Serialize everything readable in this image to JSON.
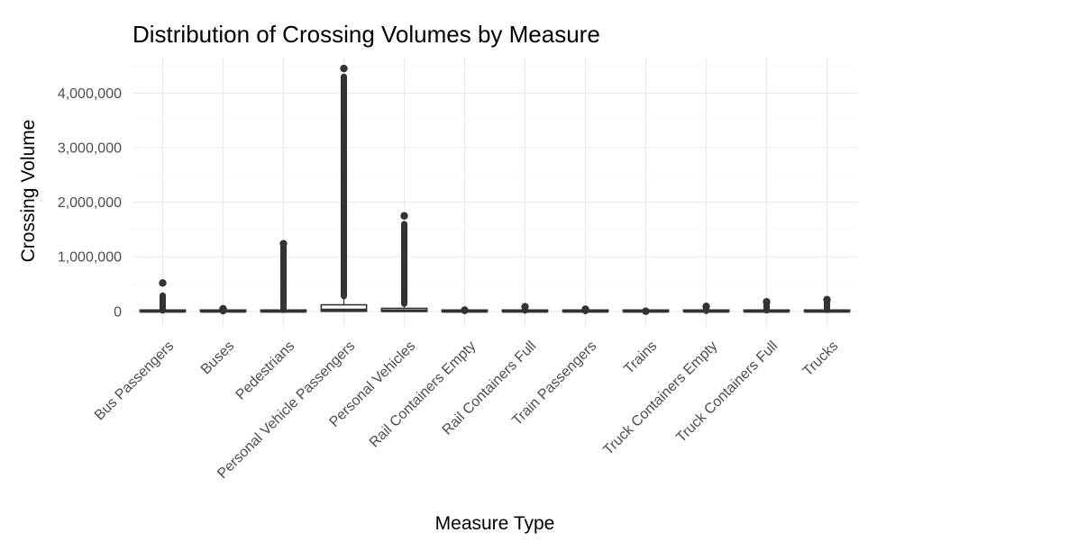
{
  "chart_data": {
    "type": "boxplot",
    "title": "Distribution of Crossing Volumes by Measure",
    "xlabel": "Measure Type",
    "ylabel": "Crossing Volume",
    "ylim": [
      -300000,
      4650000
    ],
    "yticks": [
      0,
      1000000,
      2000000,
      3000000,
      4000000
    ],
    "ytick_labels": [
      "0",
      "1,000,000",
      "2,000,000",
      "3,000,000",
      "4,000,000"
    ],
    "grid": true,
    "legend": "none",
    "colors": {
      "box_outline": "#333333",
      "box_fill": "#ffffff",
      "outlier": "#333333",
      "grid": "#ebebeb"
    },
    "categories": [
      "Bus Passengers",
      "Buses",
      "Pedestrians",
      "Personal Vehicle Passengers",
      "Personal Vehicles",
      "Rail Containers Empty",
      "Rail Containers Full",
      "Train Passengers",
      "Trains",
      "Truck Containers Empty",
      "Truck Containers Full",
      "Trucks"
    ],
    "boxes": [
      {
        "q1": 0,
        "median": 0,
        "q3": 5000,
        "whisker_low": 0,
        "whisker_high": 12000,
        "outlier_low": 15000,
        "outlier_high": 290000,
        "outlier_max": 520000
      },
      {
        "q1": 0,
        "median": 0,
        "q3": 300,
        "whisker_low": 0,
        "whisker_high": 700,
        "outlier_low": 1000,
        "outlier_high": 45000,
        "outlier_max": 48000
      },
      {
        "q1": 0,
        "median": 0,
        "q3": 8000,
        "whisker_low": 0,
        "whisker_high": 20000,
        "outlier_low": 25000,
        "outlier_high": 1180000,
        "outlier_max": 1240000
      },
      {
        "q1": 0,
        "median": 25000,
        "q3": 120000,
        "whisker_low": 0,
        "whisker_high": 270000,
        "outlier_low": 280000,
        "outlier_high": 4300000,
        "outlier_max": 4450000
      },
      {
        "q1": 0,
        "median": 10000,
        "q3": 55000,
        "whisker_low": 0,
        "whisker_high": 130000,
        "outlier_low": 140000,
        "outlier_high": 1600000,
        "outlier_max": 1750000
      },
      {
        "q1": 0,
        "median": 0,
        "q3": 2000,
        "whisker_low": 0,
        "whisker_high": 5000,
        "outlier_low": 6000,
        "outlier_high": 20000,
        "outlier_max": 22000
      },
      {
        "q1": 0,
        "median": 0,
        "q3": 5000,
        "whisker_low": 0,
        "whisker_high": 12000,
        "outlier_low": 15000,
        "outlier_high": 80000,
        "outlier_max": 85000
      },
      {
        "q1": 0,
        "median": 0,
        "q3": 1500,
        "whisker_low": 0,
        "whisker_high": 3500,
        "outlier_low": 4000,
        "outlier_high": 38000,
        "outlier_max": 40000
      },
      {
        "q1": 0,
        "median": 0,
        "q3": 100,
        "whisker_low": 0,
        "whisker_high": 200,
        "outlier_low": 300,
        "outlier_high": 1500,
        "outlier_max": 2000
      },
      {
        "q1": 0,
        "median": 0,
        "q3": 3000,
        "whisker_low": 0,
        "whisker_high": 7000,
        "outlier_low": 8000,
        "outlier_high": 85000,
        "outlier_max": 90000
      },
      {
        "q1": 0,
        "median": 0,
        "q3": 6000,
        "whisker_low": 0,
        "whisker_high": 15000,
        "outlier_low": 18000,
        "outlier_high": 165000,
        "outlier_max": 175000
      },
      {
        "q1": 0,
        "median": 0,
        "q3": 8000,
        "whisker_low": 0,
        "whisker_high": 20000,
        "outlier_low": 25000,
        "outlier_high": 205000,
        "outlier_max": 215000
      }
    ]
  }
}
